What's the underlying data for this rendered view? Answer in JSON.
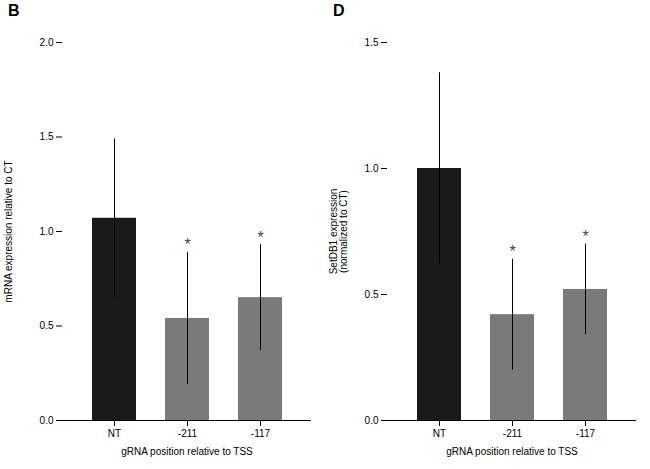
{
  "chart_data": [
    {
      "type": "bar",
      "title": "B",
      "categories": [
        "NT",
        "-211",
        "-117"
      ],
      "values": [
        1.07,
        0.54,
        0.65
      ],
      "errors": [
        0.42,
        0.35,
        0.28
      ],
      "colors": [
        "#1a1a1a",
        "#7a7a7a",
        "#7a7a7a"
      ],
      "xlabel": "gRNA position relative to TSS",
      "ylabel": "mRNA expression relative to CT",
      "ylim": [
        0,
        2.0
      ],
      "yticks": [
        {
          "value": 0,
          "label": "0.0"
        },
        0.5,
        {
          "value": 1,
          "label": "1.0"
        },
        1.5,
        {
          "value": 2,
          "label": "2.0"
        }
      ],
      "annotations": [
        {
          "category": "-211",
          "text": "*"
        },
        {
          "category": "-117",
          "text": "*"
        }
      ]
    },
    {
      "type": "bar",
      "title": "D",
      "categories": [
        "NT",
        "-211",
        "-117"
      ],
      "values": [
        1.0,
        0.42,
        0.52
      ],
      "errors": [
        0.38,
        0.22,
        0.18
      ],
      "colors": [
        "#1a1a1a",
        "#7a7a7a",
        "#7a7a7a"
      ],
      "xlabel": "gRNA position relative to TSS",
      "ylabel": "SetDB1 expression\n(normalized to CT)",
      "ylim": [
        0,
        1.5
      ],
      "yticks": [
        {
          "value": 0,
          "label": "0.0"
        },
        0.5,
        {
          "value": 1,
          "label": "1.0"
        },
        1.5
      ],
      "annotations": [
        {
          "category": "-211",
          "text": "*"
        },
        {
          "category": "-117",
          "text": "*"
        }
      ]
    }
  ]
}
